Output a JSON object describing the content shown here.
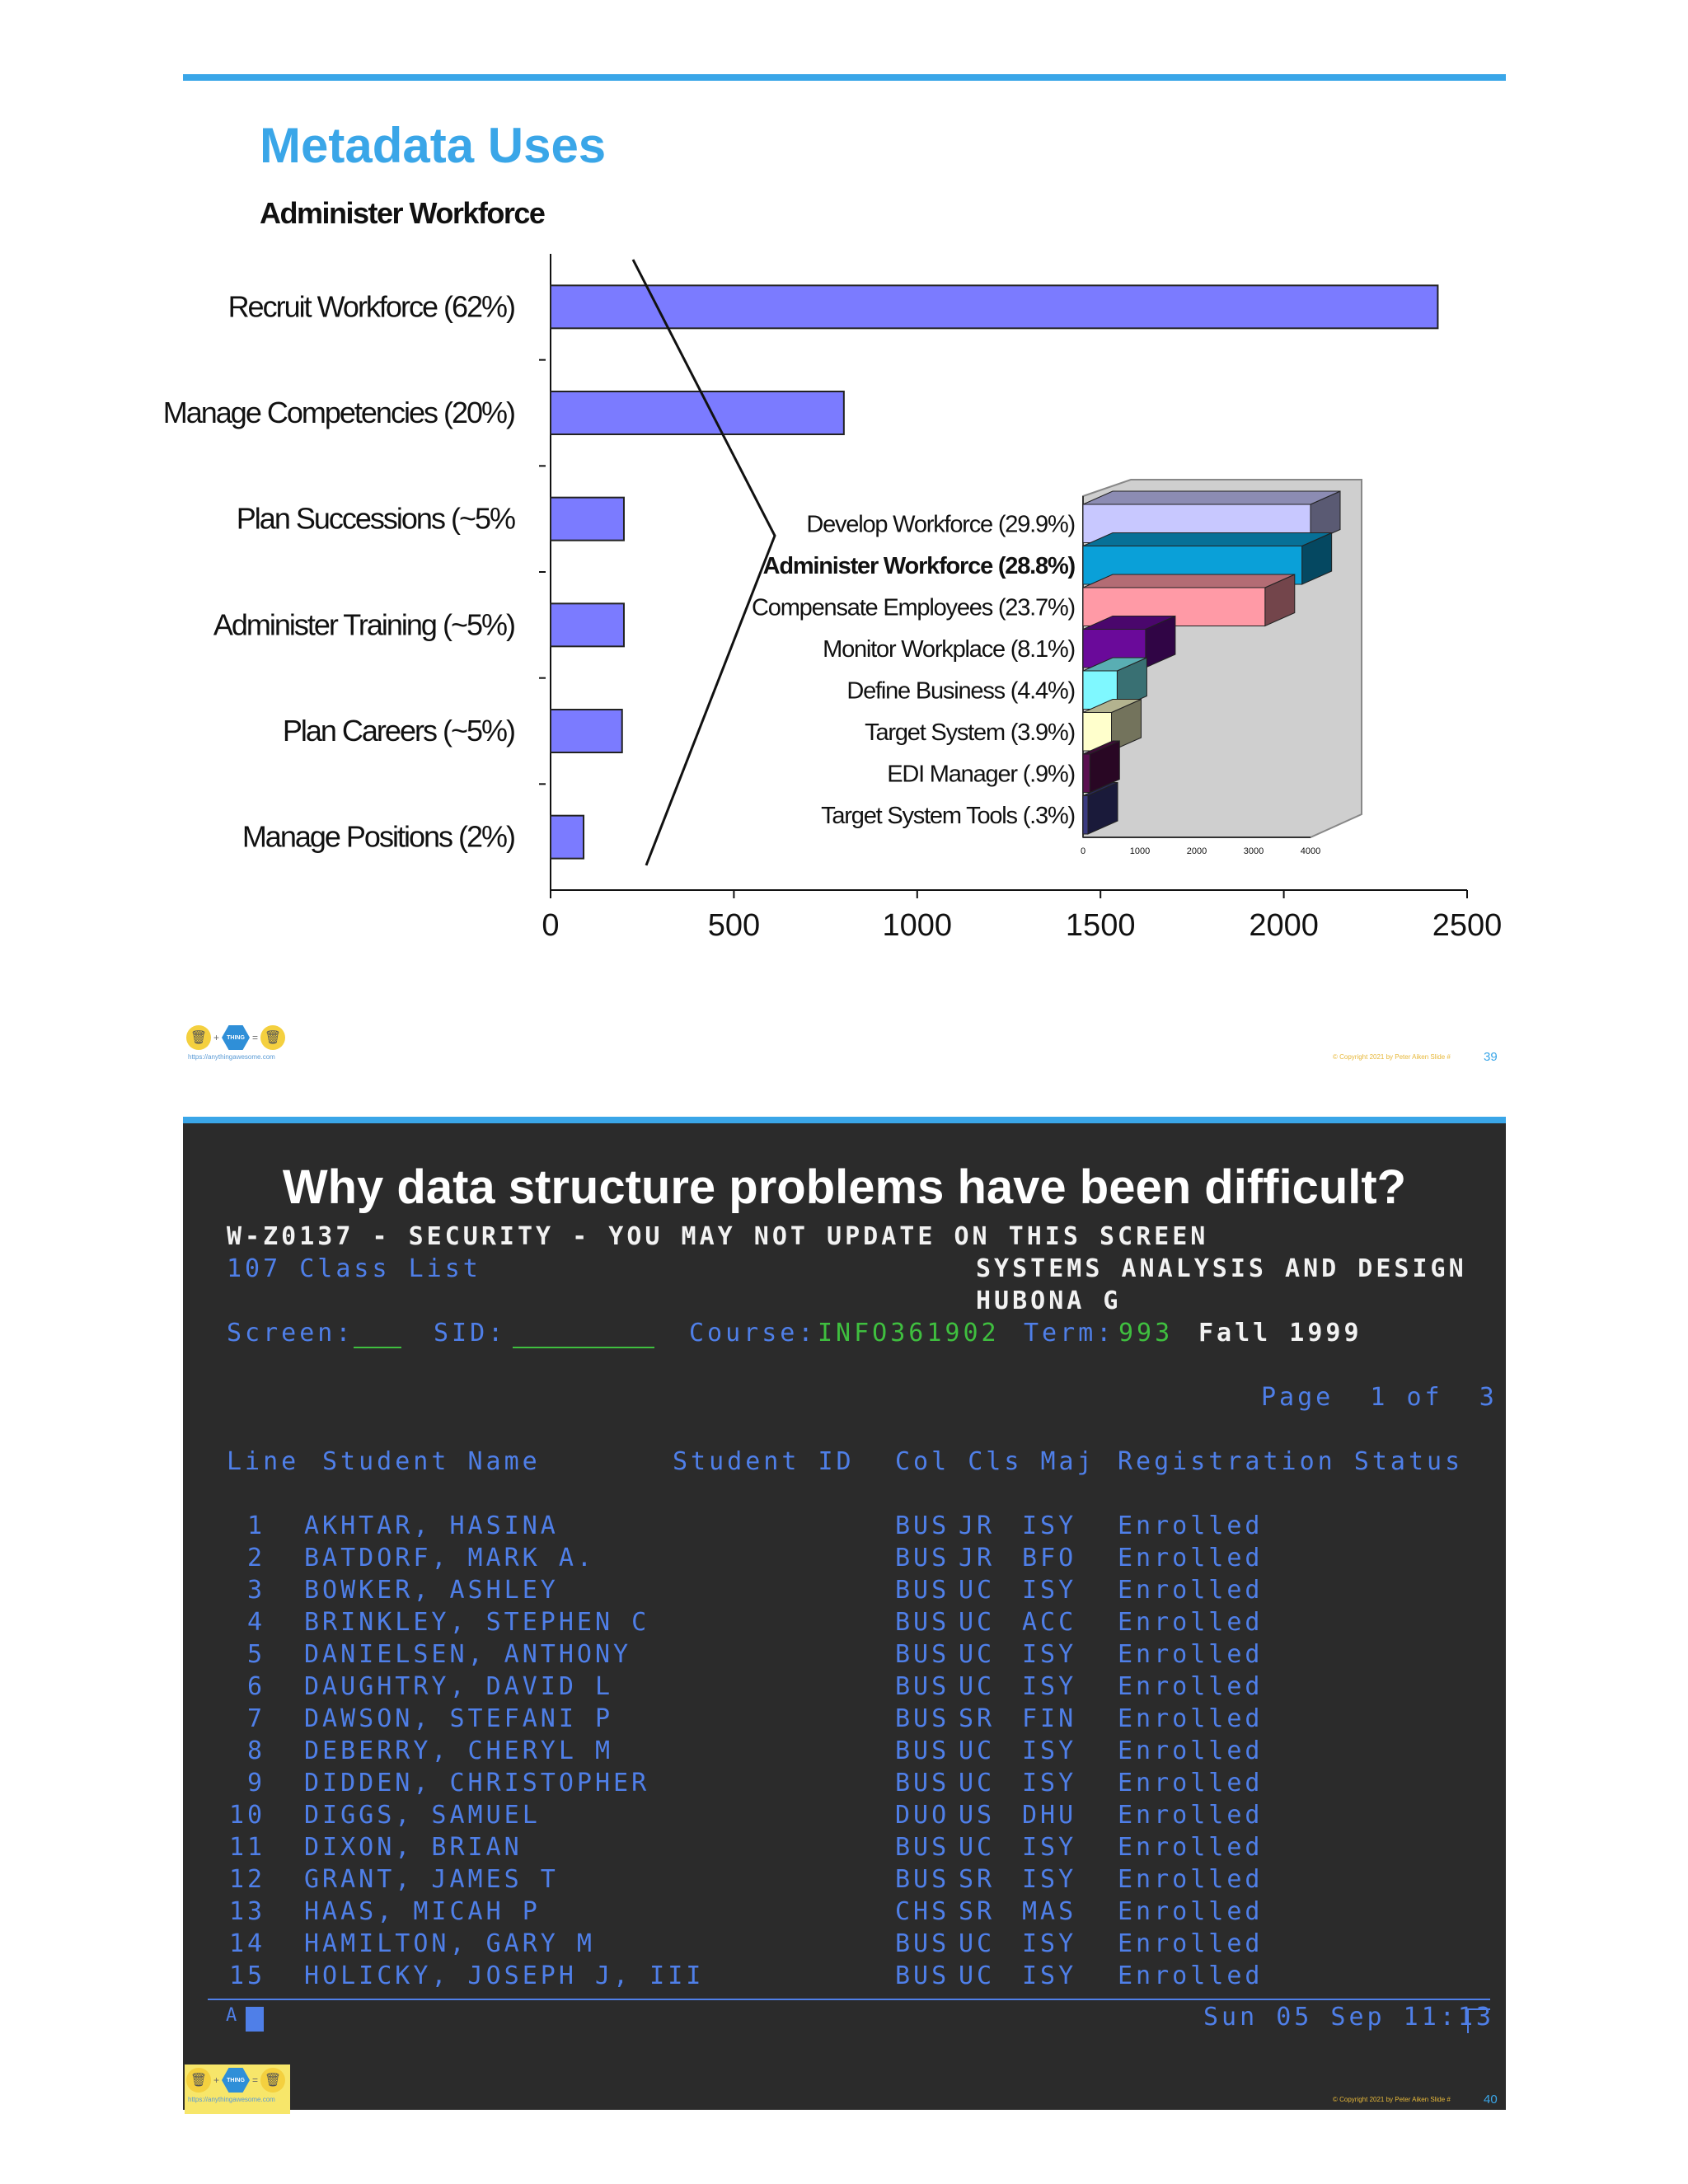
{
  "slide1": {
    "title": "Metadata Uses",
    "subtitle": "Administer Workforce",
    "slide_number": "39",
    "copyright": "© Copyright 2021 by Peter Aiken Slide #",
    "logo_url": "https://anythingawesome.com",
    "logo_text": "THING"
  },
  "chart_data": [
    {
      "type": "bar",
      "orientation": "horizontal",
      "title": "Administer Workforce",
      "categories": [
        "Recruit Workforce (62%)",
        "Manage Competencies (20%)",
        "Plan Successions (~5%",
        "Administer Training (~5%)",
        "Plan Careers (~5%)",
        "Manage Positions (2%)"
      ],
      "values": [
        2420,
        800,
        200,
        200,
        195,
        90
      ],
      "xlim": [
        0,
        2500
      ],
      "xticks": [
        0,
        500,
        1000,
        1500,
        2000,
        2500
      ],
      "color": "#7b7bff",
      "grid": false
    },
    {
      "type": "bar",
      "orientation": "horizontal",
      "style": "3d",
      "categories": [
        "Develop Workforce (29.9%)",
        "Administer Workforce (28.8%)",
        "Compensate Employees (23.7%)",
        "Monitor Workplace (8.1%)",
        "Define Business (4.4%)",
        "Target System (3.9%)",
        "EDI Manager (.9%)",
        "Target System Tools (.3%)"
      ],
      "values": [
        4000,
        3850,
        3200,
        1100,
        600,
        500,
        120,
        40
      ],
      "colors": [
        "#c8c8ff",
        "#0aa0d8",
        "#ff9aa6",
        "#6a0a9a",
        "#7ff8ff",
        "#ffffcc",
        "#5a1050",
        "#3a3a80"
      ],
      "xlim": [
        0,
        4000
      ],
      "xticks": [
        "0",
        "1000",
        "2000",
        "3000",
        "4000"
      ]
    }
  ],
  "slide2": {
    "title": "Why data structure problems have been difficult?",
    "warning": "W-Z0137 - SECURITY - YOU MAY NOT UPDATE ON THIS SCREEN",
    "screen_name": "107 Class List",
    "course_title": "SYSTEMS ANALYSIS AND DESIGN",
    "instructor": "HUBONA G",
    "screen_label": "Screen:",
    "sid_label": "SID:",
    "course_label": "Course:",
    "course_value": "INFO361902",
    "term_label": "Term:",
    "term_value": "993",
    "semester": "Fall 1999",
    "page_info": "Page  1 of  3",
    "columns": [
      "Line",
      "Student Name",
      "Student ID",
      "Col Cls Maj",
      "Registration Status"
    ],
    "rows": [
      {
        "line": " 1",
        "name": "AKHTAR, HASINA",
        "col": "BUS",
        "cls": "JR",
        "maj": "ISY",
        "status": "Enrolled"
      },
      {
        "line": " 2",
        "name": "BATDORF, MARK A.",
        "col": "BUS",
        "cls": "JR",
        "maj": "BFO",
        "status": "Enrolled"
      },
      {
        "line": " 3",
        "name": "BOWKER, ASHLEY",
        "col": "BUS",
        "cls": "UC",
        "maj": "ISY",
        "status": "Enrolled"
      },
      {
        "line": " 4",
        "name": "BRINKLEY, STEPHEN C",
        "col": "BUS",
        "cls": "UC",
        "maj": "ACC",
        "status": "Enrolled"
      },
      {
        "line": " 5",
        "name": "DANIELSEN, ANTHONY",
        "col": "BUS",
        "cls": "UC",
        "maj": "ISY",
        "status": "Enrolled"
      },
      {
        "line": " 6",
        "name": "DAUGHTRY, DAVID L",
        "col": "BUS",
        "cls": "UC",
        "maj": "ISY",
        "status": "Enrolled"
      },
      {
        "line": " 7",
        "name": "DAWSON, STEFANI P",
        "col": "BUS",
        "cls": "SR",
        "maj": "FIN",
        "status": "Enrolled"
      },
      {
        "line": " 8",
        "name": "DEBERRY, CHERYL M",
        "col": "BUS",
        "cls": "UC",
        "maj": "ISY",
        "status": "Enrolled"
      },
      {
        "line": " 9",
        "name": "DIDDEN, CHRISTOPHER",
        "col": "BUS",
        "cls": "UC",
        "maj": "ISY",
        "status": "Enrolled"
      },
      {
        "line": "10",
        "name": "DIGGS, SAMUEL",
        "col": "DUO",
        "cls": "US",
        "maj": "DHU",
        "status": "Enrolled"
      },
      {
        "line": "11",
        "name": "DIXON, BRIAN",
        "col": "BUS",
        "cls": "UC",
        "maj": "ISY",
        "status": "Enrolled"
      },
      {
        "line": "12",
        "name": "GRANT, JAMES T",
        "col": "BUS",
        "cls": "SR",
        "maj": "ISY",
        "status": "Enrolled"
      },
      {
        "line": "13",
        "name": "HAAS, MICAH P",
        "col": "CHS",
        "cls": "SR",
        "maj": "MAS",
        "status": "Enrolled"
      },
      {
        "line": "14",
        "name": "HAMILTON, GARY M",
        "col": "BUS",
        "cls": "UC",
        "maj": "ISY",
        "status": "Enrolled"
      },
      {
        "line": "15",
        "name": "HOLICKY, JOSEPH J, III",
        "col": "BUS",
        "cls": "UC",
        "maj": "ISY",
        "status": "Enrolled"
      }
    ],
    "datetime": "Sun 05 Sep 11:13",
    "slide_number": "40",
    "copyright": "© Copyright 2021 by Peter Aiken Slide #",
    "logo_url": "https://anythingawesome.com",
    "logo_text": "THING"
  }
}
